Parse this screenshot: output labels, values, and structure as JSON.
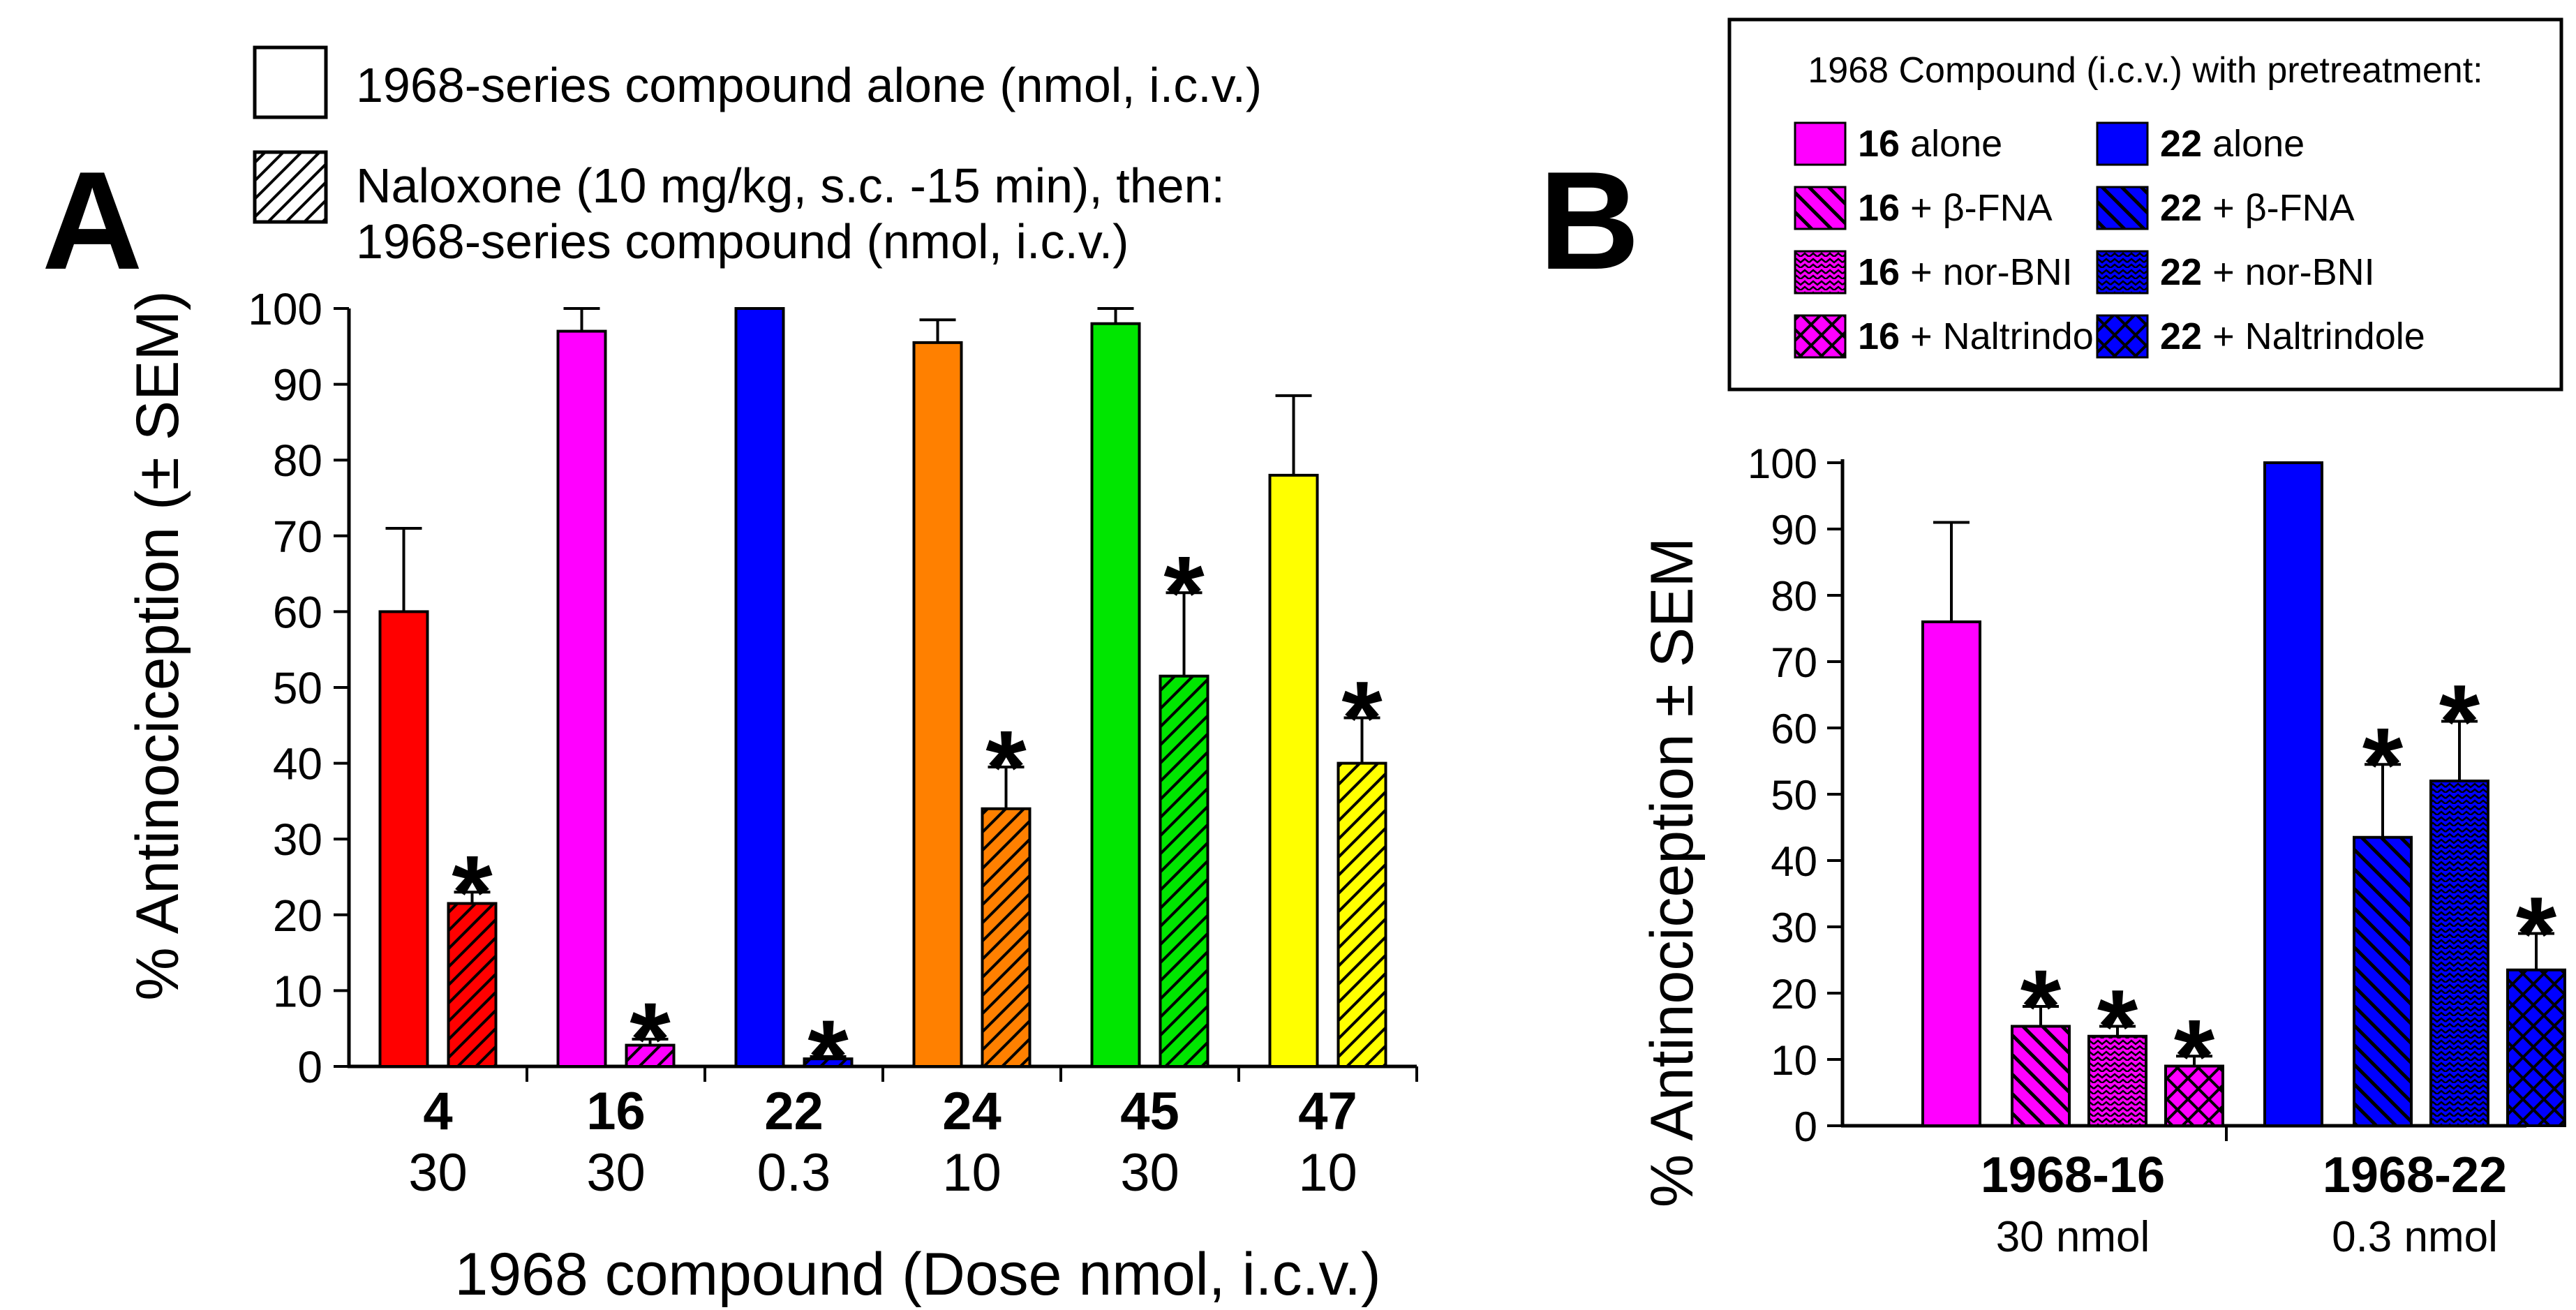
{
  "chart_data": [
    {
      "panel": "A",
      "type": "bar",
      "ylabel": "% Antinociception (± SEM)",
      "xlabel": "1968 compound (Dose nmol, i.c.v.)",
      "ylim": [
        0,
        100
      ],
      "yticks": [
        0,
        10,
        20,
        30,
        40,
        50,
        60,
        70,
        80,
        90,
        100
      ],
      "legend": [
        {
          "label": "1968-series compound alone (nmol, i.c.v.)",
          "pattern": "none"
        },
        {
          "label": "Naloxone (10 mg/kg, s.c. -15 min), then:",
          "label2": "1968-series compound (nmol, i.c.v.)",
          "pattern": "hatch"
        }
      ],
      "groups": [
        {
          "compound": "4",
          "dose": "30",
          "color": "#ff0000",
          "alone": {
            "value": 60,
            "sem": 11
          },
          "naloxone": {
            "value": 21.5,
            "sem": 1.5,
            "sig": "*"
          }
        },
        {
          "compound": "16",
          "dose": "30",
          "color": "#ff00ff",
          "alone": {
            "value": 97,
            "sem": 3
          },
          "naloxone": {
            "value": 2.8,
            "sem": 0.8,
            "sig": "*"
          }
        },
        {
          "compound": "22",
          "dose": "0.3",
          "color": "#0000ff",
          "alone": {
            "value": 100,
            "sem": 0
          },
          "naloxone": {
            "value": 1,
            "sem": 0.3,
            "sig": "*"
          }
        },
        {
          "compound": "24",
          "dose": "10",
          "color": "#ff8000",
          "alone": {
            "value": 95.5,
            "sem": 3
          },
          "naloxone": {
            "value": 34,
            "sem": 5.5,
            "sig": "*"
          }
        },
        {
          "compound": "45",
          "dose": "30",
          "color": "#00e600",
          "alone": {
            "value": 98,
            "sem": 2
          },
          "naloxone": {
            "value": 51.5,
            "sem": 11,
            "sig": "*"
          }
        },
        {
          "compound": "47",
          "dose": "10",
          "color": "#ffff00",
          "alone": {
            "value": 78,
            "sem": 10.5
          },
          "naloxone": {
            "value": 40,
            "sem": 6,
            "sig": "*"
          }
        }
      ]
    },
    {
      "panel": "B",
      "type": "bar",
      "ylabel": "% Antinociception ± SEM",
      "ylim": [
        0,
        100
      ],
      "yticks": [
        0,
        10,
        20,
        30,
        40,
        50,
        60,
        70,
        80,
        90,
        100
      ],
      "legend_title": "1968 Compound (i.c.v.) with pretreatment:",
      "legend": [
        {
          "num": "16",
          "rest": " alone",
          "color": "#ff00ff",
          "pattern": "none"
        },
        {
          "num": "22",
          "rest": " alone",
          "color": "#0000ff",
          "pattern": "none"
        },
        {
          "num": "16",
          "rest": " + β-FNA",
          "color": "#ff00ff",
          "pattern": "diag"
        },
        {
          "num": "22",
          "rest": " + β-FNA",
          "color": "#0000ff",
          "pattern": "diag"
        },
        {
          "num": "16",
          "rest": " + nor-BNI",
          "color": "#ff00ff",
          "pattern": "wave"
        },
        {
          "num": "22",
          "rest": " + nor-BNI",
          "color": "#0000ff",
          "pattern": "wave"
        },
        {
          "num": "16",
          "rest": " + Naltrindole",
          "color": "#ff00ff",
          "pattern": "cross"
        },
        {
          "num": "22",
          "rest": " + Naltrindole",
          "color": "#0000ff",
          "pattern": "cross"
        }
      ],
      "groups": [
        {
          "name": "1968-16",
          "dose": "30 nmol",
          "color": "#ff00ff",
          "bars": [
            {
              "treatment": "alone",
              "pattern": "none",
              "value": 76,
              "sem": 15
            },
            {
              "treatment": "β-FNA",
              "pattern": "diag",
              "value": 15,
              "sem": 3,
              "sig": "*"
            },
            {
              "treatment": "nor-BNI",
              "pattern": "wave",
              "value": 13.5,
              "sem": 1.5,
              "sig": "*"
            },
            {
              "treatment": "Naltrindole",
              "pattern": "cross",
              "value": 9,
              "sem": 1.5,
              "sig": "*"
            }
          ]
        },
        {
          "name": "1968-22",
          "dose": "0.3 nmol",
          "color": "#0000ff",
          "bars": [
            {
              "treatment": "alone",
              "pattern": "none",
              "value": 100,
              "sem": 0
            },
            {
              "treatment": "β-FNA",
              "pattern": "diag",
              "value": 43.5,
              "sem": 11,
              "sig": "*"
            },
            {
              "treatment": "nor-BNI",
              "pattern": "wave",
              "value": 52,
              "sem": 9,
              "sig": "*"
            },
            {
              "treatment": "Naltrindole",
              "pattern": "cross",
              "value": 23.5,
              "sem": 5.5,
              "sig": "*"
            }
          ]
        }
      ]
    }
  ]
}
